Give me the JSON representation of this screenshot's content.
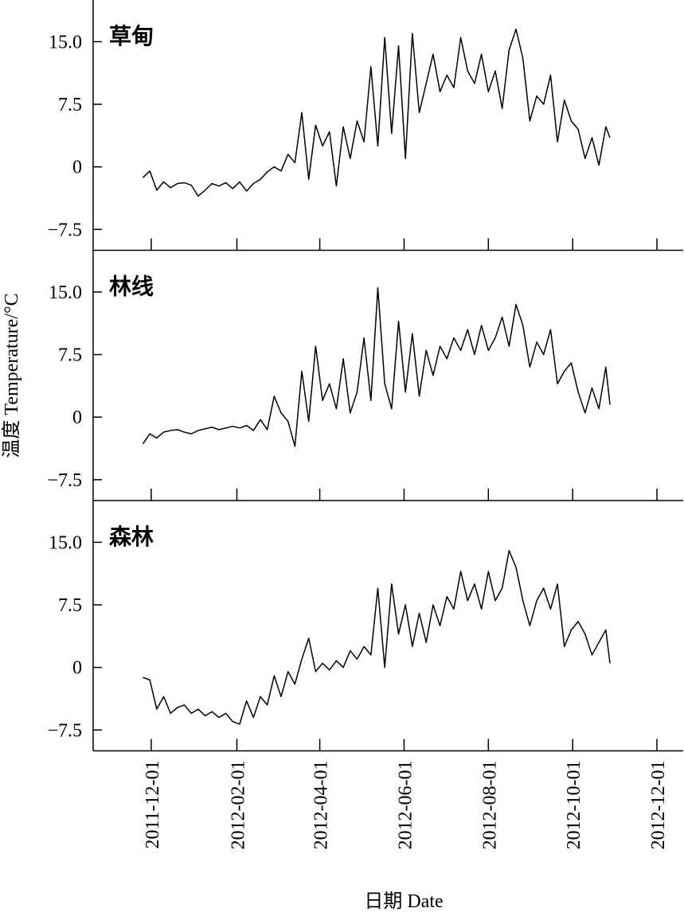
{
  "chart_data": {
    "type": "line",
    "facet": true,
    "ylabel": "温度 Temperature/°C",
    "xlabel": "日期 Date",
    "xlim": [
      "2011-10-20",
      "2012-12-20"
    ],
    "xticks": [
      "2011-12-01",
      "2012-02-01",
      "2012-04-01",
      "2012-06-01",
      "2012-08-01",
      "2012-10-01",
      "2012-12-01"
    ],
    "ylim": [
      -10,
      20
    ],
    "yticks": [
      {
        "value": -7.5,
        "label": "−7.5"
      },
      0,
      7.5,
      {
        "value": 15,
        "label": "15.0"
      }
    ],
    "x": [
      "2011-11-25",
      "2011-11-30",
      "2011-12-05",
      "2011-12-10",
      "2011-12-15",
      "2011-12-20",
      "2011-12-25",
      "2011-12-30",
      "2012-01-04",
      "2012-01-09",
      "2012-01-14",
      "2012-01-19",
      "2012-01-24",
      "2012-01-29",
      "2012-02-03",
      "2012-02-08",
      "2012-02-13",
      "2012-02-18",
      "2012-02-23",
      "2012-02-28",
      "2012-03-04",
      "2012-03-09",
      "2012-03-14",
      "2012-03-19",
      "2012-03-24",
      "2012-03-29",
      "2012-04-03",
      "2012-04-08",
      "2012-04-13",
      "2012-04-18",
      "2012-04-23",
      "2012-04-28",
      "2012-05-03",
      "2012-05-08",
      "2012-05-13",
      "2012-05-18",
      "2012-05-23",
      "2012-05-28",
      "2012-06-02",
      "2012-06-07",
      "2012-06-12",
      "2012-06-17",
      "2012-06-22",
      "2012-06-27",
      "2012-07-02",
      "2012-07-07",
      "2012-07-12",
      "2012-07-17",
      "2012-07-22",
      "2012-07-27",
      "2012-08-01",
      "2012-08-06",
      "2012-08-11",
      "2012-08-16",
      "2012-08-21",
      "2012-08-26",
      "2012-08-31",
      "2012-09-05",
      "2012-09-10",
      "2012-09-15",
      "2012-09-20",
      "2012-09-25",
      "2012-09-30",
      "2012-10-05",
      "2012-10-10",
      "2012-10-15",
      "2012-10-20",
      "2012-10-25",
      "2012-10-28"
    ],
    "series": [
      {
        "name": "草甸",
        "color": "#000000",
        "values": [
          -1.3,
          -0.5,
          -2.8,
          -1.8,
          -2.5,
          -2.0,
          -1.9,
          -2.2,
          -3.5,
          -2.8,
          -2.0,
          -2.3,
          -1.9,
          -2.6,
          -1.8,
          -2.9,
          -2.0,
          -1.5,
          -0.6,
          0.0,
          -0.5,
          1.5,
          0.5,
          6.5,
          -1.5,
          5.0,
          2.5,
          4.2,
          -2.3,
          4.8,
          1.0,
          5.5,
          3.0,
          12.0,
          2.5,
          15.5,
          4.0,
          14.5,
          1.0,
          16.0,
          6.5,
          10.0,
          13.5,
          9.0,
          11.0,
          9.5,
          15.5,
          11.5,
          10.0,
          13.5,
          9.0,
          11.5,
          7.0,
          14.0,
          16.5,
          13.0,
          5.5,
          8.5,
          7.5,
          11.0,
          3.0,
          8.0,
          5.5,
          4.5,
          1.0,
          3.5,
          0.2,
          4.8,
          3.5
        ]
      },
      {
        "name": "林线",
        "color": "#000000",
        "values": [
          -3.2,
          -2.0,
          -2.5,
          -1.8,
          -1.6,
          -1.5,
          -1.8,
          -2.0,
          -1.6,
          -1.4,
          -1.2,
          -1.5,
          -1.3,
          -1.1,
          -1.3,
          -1.0,
          -1.6,
          -0.3,
          -1.5,
          2.5,
          0.5,
          -0.5,
          -3.5,
          5.5,
          -0.5,
          8.5,
          2.0,
          4.0,
          1.0,
          7.0,
          0.5,
          3.0,
          9.5,
          2.0,
          15.5,
          4.0,
          1.0,
          11.5,
          3.0,
          10.0,
          2.5,
          8.0,
          5.0,
          8.5,
          7.0,
          9.5,
          8.0,
          10.5,
          7.5,
          11.0,
          8.0,
          9.5,
          12.0,
          8.5,
          13.5,
          11.0,
          6.0,
          9.0,
          7.5,
          10.5,
          4.0,
          5.5,
          6.5,
          3.0,
          0.5,
          3.5,
          1.0,
          6.0,
          1.5
        ]
      },
      {
        "name": "森林",
        "color": "#000000",
        "values": [
          -1.2,
          -1.5,
          -5.0,
          -3.5,
          -5.5,
          -4.8,
          -4.5,
          -5.5,
          -5.0,
          -5.8,
          -5.3,
          -6.0,
          -5.5,
          -6.5,
          -6.8,
          -4.0,
          -6.0,
          -3.5,
          -4.5,
          -1.0,
          -3.5,
          -0.5,
          -2.0,
          1.0,
          3.5,
          -0.5,
          0.5,
          -0.3,
          0.8,
          0.0,
          2.0,
          1.0,
          2.5,
          1.5,
          9.5,
          0.0,
          10.0,
          4.0,
          7.5,
          2.5,
          6.5,
          3.0,
          7.5,
          5.0,
          8.5,
          7.0,
          11.5,
          8.0,
          10.0,
          7.0,
          11.5,
          8.0,
          9.5,
          14.0,
          12.0,
          8.0,
          5.0,
          8.0,
          9.5,
          7.0,
          10.0,
          2.5,
          4.5,
          5.5,
          4.0,
          1.5,
          3.0,
          4.5,
          0.5
        ]
      }
    ]
  }
}
